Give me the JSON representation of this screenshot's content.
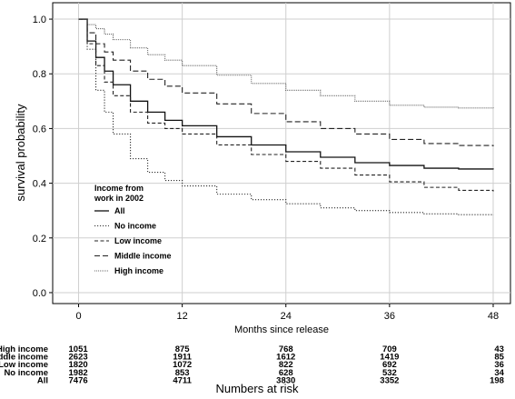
{
  "chart_data": {
    "type": "line",
    "subtype": "kaplan-meier step",
    "title": "",
    "xlabel": "Months since release",
    "ylabel": "survival probability",
    "xlim": [
      -3,
      50
    ],
    "ylim": [
      -0.04,
      1.06
    ],
    "xticks": [
      0,
      12,
      24,
      36,
      48
    ],
    "yticks": [
      0.0,
      0.2,
      0.4,
      0.6,
      0.8,
      1.0
    ],
    "ytick_labels": [
      "0.0",
      "0.2",
      "0.4",
      "0.6",
      "0.8",
      "1.0"
    ],
    "grid": true,
    "legend": {
      "title": [
        "Income from",
        "work in 2002"
      ],
      "placement": "lower-left",
      "entries": [
        {
          "label": "All",
          "series": "All"
        },
        {
          "label": "No income",
          "series": "No income"
        },
        {
          "label": "Low income",
          "series": "Low income"
        },
        {
          "label": "Middle income",
          "series": "Middle income"
        },
        {
          "label": "High income",
          "series": "High income"
        }
      ]
    },
    "series": [
      {
        "name": "All",
        "style": "solid",
        "color": "#111111",
        "x": [
          0,
          1,
          2,
          3,
          4,
          6,
          8,
          10,
          12,
          16,
          20,
          24,
          28,
          32,
          36,
          40,
          44,
          48
        ],
        "y": [
          1.0,
          0.92,
          0.86,
          0.81,
          0.76,
          0.7,
          0.66,
          0.63,
          0.61,
          0.57,
          0.54,
          0.515,
          0.495,
          0.475,
          0.465,
          0.455,
          0.452,
          0.45
        ]
      },
      {
        "name": "No income",
        "style": "dotted",
        "color": "#333333",
        "x": [
          0,
          1,
          2,
          3,
          4,
          6,
          8,
          10,
          12,
          16,
          20,
          24,
          28,
          32,
          36,
          40,
          44,
          48
        ],
        "y": [
          1.0,
          0.89,
          0.74,
          0.66,
          0.58,
          0.49,
          0.44,
          0.41,
          0.39,
          0.36,
          0.34,
          0.325,
          0.31,
          0.3,
          0.293,
          0.288,
          0.285,
          0.283
        ]
      },
      {
        "name": "Low income",
        "style": "dashed",
        "color": "#222222",
        "x": [
          0,
          1,
          2,
          3,
          4,
          6,
          8,
          10,
          12,
          16,
          20,
          24,
          28,
          32,
          36,
          40,
          44,
          48
        ],
        "y": [
          1.0,
          0.91,
          0.83,
          0.77,
          0.72,
          0.66,
          0.62,
          0.6,
          0.58,
          0.54,
          0.505,
          0.48,
          0.455,
          0.43,
          0.405,
          0.385,
          0.374,
          0.37
        ]
      },
      {
        "name": "Middle income",
        "style": "longdash",
        "color": "#222222",
        "x": [
          0,
          1,
          2,
          3,
          4,
          6,
          8,
          10,
          12,
          16,
          20,
          24,
          28,
          32,
          36,
          40,
          44,
          48
        ],
        "y": [
          1.0,
          0.95,
          0.91,
          0.88,
          0.85,
          0.81,
          0.78,
          0.755,
          0.73,
          0.69,
          0.655,
          0.625,
          0.6,
          0.58,
          0.56,
          0.545,
          0.538,
          0.535
        ]
      },
      {
        "name": "High income",
        "style": "fine-dotted",
        "color": "#444444",
        "x": [
          0,
          1,
          2,
          3,
          4,
          6,
          8,
          10,
          12,
          16,
          20,
          24,
          28,
          32,
          36,
          40,
          44,
          48
        ],
        "y": [
          1.0,
          0.98,
          0.965,
          0.945,
          0.925,
          0.895,
          0.87,
          0.85,
          0.83,
          0.795,
          0.765,
          0.74,
          0.72,
          0.7,
          0.685,
          0.678,
          0.675,
          0.674
        ]
      }
    ],
    "risk_table": {
      "title": "Numbers at risk",
      "times": [
        0,
        12,
        24,
        36,
        48
      ],
      "rows": [
        {
          "label": "High income",
          "values": [
            "1051",
            "875",
            "768",
            "709",
            "43"
          ]
        },
        {
          "label": "Middle income",
          "values": [
            "2623",
            "1911",
            "1612",
            "1419",
            "85"
          ]
        },
        {
          "label": "Low income",
          "values": [
            "1820",
            "1072",
            "822",
            "692",
            "36"
          ]
        },
        {
          "label": "No income",
          "values": [
            "1982",
            "853",
            "628",
            "532",
            "34"
          ]
        },
        {
          "label": "All",
          "values": [
            "7476",
            "4711",
            "3830",
            "3352",
            "198"
          ]
        }
      ]
    }
  }
}
